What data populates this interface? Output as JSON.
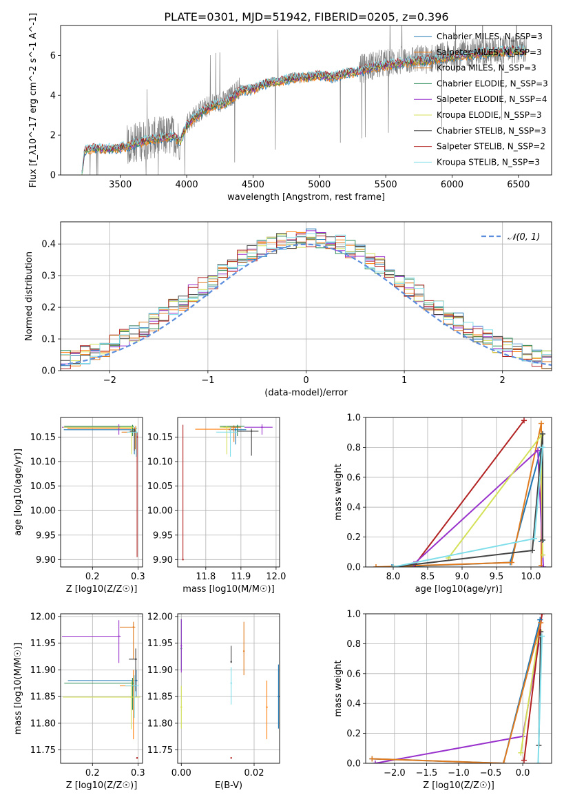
{
  "title": "PLATE=0301, MJD=51942, FIBERID=0205, z=0.396",
  "colors": {
    "Chabrier MILES": "#1f77b4",
    "Salpeter MILES": "#ff7f0e",
    "Kroupa MILES": "#e07b20",
    "Chabrier ELODIE": "#2e8b57",
    "Salpeter ELODIE": "#9932cc",
    "Kroupa ELODIE": "#d4e157",
    "Chabrier STELIB": "#444444",
    "Salpeter STELIB": "#b22222",
    "Kroupa STELIB": "#80deea",
    "data": "#808080",
    "normal": "#5b8ddc"
  },
  "chart_data": [
    {
      "id": "spectrum",
      "type": "line",
      "xlabel": "wavelength [Angstrom, rest frame]",
      "ylabel": "Flux [f_λ10^-17 erg cm^-2 s^-1 A^-1]",
      "xlim": [
        3050,
        6750
      ],
      "ylim": [
        0,
        7.5
      ],
      "xticks": [
        3500,
        4000,
        4500,
        5000,
        5500,
        6000,
        6500
      ],
      "yticks": [
        0,
        2,
        4,
        6
      ],
      "grid": false,
      "legend_position": "top-right",
      "legend": [
        "Chabrier MILES, N_SSP=3",
        "Salpeter MILES, N_SSP=3",
        "Kroupa MILES, N_SSP=3",
        "Chabrier ELODIE, N_SSP=3",
        "Salpeter ELODIE, N_SSP=4",
        "Kroupa ELODIE, N_SSP=3",
        "Chabrier STELIB, N_SSP=3",
        "Salpeter STELIB, N_SSP=2",
        "Kroupa STELIB, N_SSP=3"
      ],
      "data_continuum": {
        "x": [
          3210,
          3230,
          3300,
          3400,
          3500,
          3600,
          3700,
          3800,
          3900,
          3950,
          4000,
          4100,
          4200,
          4300,
          4400,
          4500,
          4600,
          4700,
          4800,
          4900,
          5000,
          5100,
          5200,
          5300,
          5400,
          5500,
          5600,
          5700,
          5800,
          5900,
          6000,
          6100,
          6200,
          6300,
          6400,
          6500,
          6560
        ],
        "y": [
          0.0,
          1.2,
          1.35,
          1.3,
          1.35,
          1.6,
          1.8,
          1.9,
          2.0,
          1.7,
          2.6,
          3.2,
          3.6,
          3.7,
          4.4,
          4.4,
          4.7,
          4.8,
          5.0,
          5.0,
          5.1,
          5.0,
          5.2,
          5.3,
          5.5,
          5.6,
          5.7,
          5.8,
          5.8,
          5.9,
          6.0,
          6.1,
          6.2,
          6.2,
          6.3,
          6.3,
          6.3
        ]
      },
      "model_continuum": {
        "x": [
          3210,
          3230,
          3300,
          3400,
          3500,
          3600,
          3700,
          3800,
          3900,
          3950,
          4000,
          4100,
          4200,
          4300,
          4400,
          4500,
          4600,
          4700,
          4800,
          4900,
          5000,
          5100,
          5200,
          5300,
          5400,
          5500,
          5600,
          5700,
          5800,
          5900,
          6000,
          6100,
          6200,
          6300,
          6400,
          6500,
          6560
        ],
        "y": [
          0.0,
          1.2,
          1.35,
          1.3,
          1.35,
          1.55,
          1.75,
          1.85,
          1.95,
          1.7,
          2.5,
          3.1,
          3.5,
          3.6,
          4.2,
          4.3,
          4.6,
          4.7,
          4.85,
          4.9,
          5.0,
          4.9,
          5.1,
          5.2,
          5.4,
          5.5,
          5.6,
          5.7,
          5.75,
          5.85,
          5.95,
          6.0,
          6.1,
          6.15,
          6.2,
          6.25,
          6.2
        ]
      }
    },
    {
      "id": "residuals",
      "type": "line",
      "xlabel": "(data-model)/error",
      "ylabel": "Normed distribution",
      "xlim": [
        -2.5,
        2.5
      ],
      "ylim": [
        0,
        0.47
      ],
      "xticks": [
        -2,
        -1,
        0,
        1,
        2
      ],
      "yticks": [
        0.0,
        0.1,
        0.2,
        0.3,
        0.4
      ],
      "grid": true,
      "legend_position": "top-right",
      "legend": [
        "𝒩(0, 1)"
      ],
      "hist_bin_width": 0.1
    },
    {
      "id": "age-vs-Z",
      "type": "scatter",
      "xlabel": "Z [log10(Z/Z☉)]",
      "ylabel": "age [log10(age/yr)]",
      "xlim": [
        0.13,
        0.31
      ],
      "ylim": [
        9.885,
        10.19
      ],
      "xticks": [
        0.2,
        0.3
      ],
      "yticks": [
        9.9,
        9.95,
        10.0,
        10.05,
        10.1,
        10.15
      ],
      "grid": true,
      "points": [
        {
          "series": "Chabrier MILES",
          "x": 0.292,
          "y": 10.165,
          "xerr": [
            0.155,
            0.004
          ],
          "yerr": [
            0.05,
            0.005
          ]
        },
        {
          "series": "Salpeter MILES",
          "x": 0.295,
          "y": 10.168,
          "xerr": [
            0.15,
            0.003
          ],
          "yerr": [
            0.01,
            0.005
          ]
        },
        {
          "series": "Kroupa MILES",
          "x": 0.294,
          "y": 10.16,
          "xerr": [
            0.03,
            0.004
          ],
          "yerr": [
            0.035,
            0.006
          ]
        },
        {
          "series": "Chabrier ELODIE",
          "x": 0.288,
          "y": 10.172,
          "xerr": [
            0.15,
            0.003
          ],
          "yerr": [
            0.02,
            0.003
          ]
        },
        {
          "series": "Salpeter ELODIE",
          "x": 0.258,
          "y": 10.17,
          "xerr": [
            0.125,
            0.003
          ],
          "yerr": [
            0.015,
            0.006
          ]
        },
        {
          "series": "Kroupa ELODIE",
          "x": 0.286,
          "y": 10.17,
          "xerr": [
            0.15,
            0.004
          ],
          "yerr": [
            0.055,
            0.003
          ]
        },
        {
          "series": "Chabrier STELIB",
          "x": 0.292,
          "y": 10.162,
          "xerr": [
            0.01,
            0.004
          ],
          "yerr": [
            0.04,
            0.005
          ]
        },
        {
          "series": "Salpeter STELIB",
          "x": 0.298,
          "y": 10.15,
          "xerr": [
            0.002,
            0.002
          ],
          "yerr": [
            0.245,
            0.01
          ]
        },
        {
          "series": "Kroupa STELIB",
          "x": 0.296,
          "y": 10.16,
          "xerr": [
            0.02,
            0.003
          ],
          "yerr": [
            0.05,
            0.01
          ]
        }
      ]
    },
    {
      "id": "age-vs-mass",
      "type": "scatter",
      "xlabel": "mass [log10(M/M☉)]",
      "ylabel": "",
      "xlim": [
        11.72,
        12.01
      ],
      "ylim": [
        9.885,
        10.19
      ],
      "xticks": [
        11.8,
        11.9,
        12.0
      ],
      "yticks": [
        9.9,
        9.95,
        10.0,
        10.05,
        10.1,
        10.15
      ],
      "grid": true,
      "points": [
        {
          "series": "Chabrier MILES",
          "x": 11.885,
          "y": 10.165,
          "xerr": [
            0.02,
            0.03
          ],
          "yerr": [
            0.03,
            0.005
          ]
        },
        {
          "series": "Salpeter MILES",
          "x": 11.87,
          "y": 10.166,
          "xerr": [
            0.1,
            0.01
          ],
          "yerr": [
            0.01,
            0.005
          ]
        },
        {
          "series": "Kroupa MILES",
          "x": 11.88,
          "y": 10.17,
          "xerr": [
            0.03,
            0.02
          ],
          "yerr": [
            0.03,
            0.004
          ]
        },
        {
          "series": "Chabrier ELODIE",
          "x": 11.89,
          "y": 10.172,
          "xerr": [
            0.05,
            0.02
          ],
          "yerr": [
            0.02,
            0.003
          ]
        },
        {
          "series": "Salpeter ELODIE",
          "x": 11.96,
          "y": 10.17,
          "xerr": [
            0.05,
            0.03
          ],
          "yerr": [
            0.015,
            0.006
          ]
        },
        {
          "series": "Kroupa ELODIE",
          "x": 11.86,
          "y": 10.17,
          "xerr": [
            0.02,
            0.01
          ],
          "yerr": [
            0.055,
            0.003
          ]
        },
        {
          "series": "Chabrier STELIB",
          "x": 11.93,
          "y": 10.162,
          "xerr": [
            0.04,
            0.02
          ],
          "yerr": [
            0.05,
            0.005
          ]
        },
        {
          "series": "Salpeter STELIB",
          "x": 11.735,
          "y": 9.9,
          "xerr": [
            0.001,
            0.001
          ],
          "yerr": [
            0.001,
            0.275
          ]
        },
        {
          "series": "Kroupa STELIB",
          "x": 11.87,
          "y": 10.16,
          "xerr": [
            0.04,
            0.02
          ],
          "yerr": [
            0.05,
            0.01
          ]
        }
      ]
    },
    {
      "id": "weight-vs-age",
      "type": "line",
      "xlabel": "age  [log10(age/yr)]",
      "ylabel": "mass weight",
      "xlim": [
        7.6,
        10.3
      ],
      "ylim": [
        0,
        1.0
      ],
      "xticks": [
        8.0,
        8.5,
        9.0,
        9.5,
        10.0
      ],
      "yticks": [
        0.0,
        0.2,
        0.4,
        0.6,
        0.8,
        1.0
      ],
      "grid": true,
      "series": [
        {
          "name": "Chabrier MILES",
          "x": [
            7.98,
            9.7,
            10.15,
            10.15
          ],
          "y": [
            0.0,
            0.03,
            0.8,
            0.17
          ]
        },
        {
          "name": "Kroupa MILES",
          "x": [
            7.75,
            9.72,
            10.15,
            10.15
          ],
          "y": [
            0.0,
            0.03,
            0.96,
            0.01
          ]
        },
        {
          "name": "Salpeter STELIB",
          "x": [
            8.32,
            9.9
          ],
          "y": [
            0.02,
            0.98
          ]
        },
        {
          "name": "Salpeter ELODIE",
          "x": [
            8.3,
            10.1,
            10.18
          ],
          "y": [
            0.02,
            0.78,
            0.0
          ]
        },
        {
          "name": "Kroupa ELODIE",
          "x": [
            8.8,
            10.15,
            10.17
          ],
          "y": [
            0.06,
            0.88,
            0.08
          ]
        },
        {
          "name": "Chabrier STELIB",
          "x": [
            8.0,
            10.02,
            10.17,
            10.17
          ],
          "y": [
            0.0,
            0.11,
            0.89,
            0.18
          ]
        },
        {
          "name": "Kroupa STELIB",
          "x": [
            8.0,
            10.05,
            10.17
          ],
          "y": [
            0.0,
            0.19,
            0.8
          ]
        }
      ]
    },
    {
      "id": "mass-vs-Z",
      "type": "scatter",
      "xlabel": "Z [log10(Z/Z☉)]",
      "ylabel": "mass [log10(M/M☉)]",
      "xlim": [
        0.13,
        0.31
      ],
      "ylim": [
        11.725,
        12.005
      ],
      "xticks": [
        0.2,
        0.3
      ],
      "yticks": [
        11.75,
        11.8,
        11.85,
        11.9,
        11.95,
        12.0
      ],
      "grid": true,
      "points": [
        {
          "series": "Chabrier MILES",
          "x": 0.296,
          "y": 11.88,
          "xerr": [
            0.15,
            0.003
          ],
          "yerr": [
            0.03,
            0.02
          ]
        },
        {
          "series": "Salpeter MILES",
          "x": 0.29,
          "y": 11.87,
          "xerr": [
            0.03,
            0.004
          ],
          "yerr": [
            0.1,
            0.03
          ]
        },
        {
          "series": "Kroupa MILES",
          "x": 0.29,
          "y": 11.98,
          "xerr": [
            0.03,
            0.004
          ],
          "yerr": [
            0.06,
            0.01
          ]
        },
        {
          "series": "Chabrier ELODIE",
          "x": 0.288,
          "y": 11.875,
          "xerr": [
            0.15,
            0.003
          ],
          "yerr": [
            0.05,
            0.01
          ]
        },
        {
          "series": "Salpeter ELODIE",
          "x": 0.258,
          "y": 11.963,
          "xerr": [
            0.125,
            0.004
          ],
          "yerr": [
            0.05,
            0.03
          ]
        },
        {
          "series": "Kroupa ELODIE",
          "x": 0.285,
          "y": 11.849,
          "xerr": [
            0.15,
            0.02
          ],
          "yerr": [
            0.06,
            0.03
          ]
        },
        {
          "series": "Chabrier STELIB",
          "x": 0.295,
          "y": 11.92,
          "xerr": [
            0.015,
            0.003
          ],
          "yerr": [
            0.06,
            0.02
          ]
        },
        {
          "series": "Salpeter STELIB",
          "x": 0.298,
          "y": 11.735,
          "xerr": [
            0.002,
            0.002
          ],
          "yerr": [
            0.001,
            0.001
          ]
        },
        {
          "series": "Kroupa STELIB",
          "x": 0.292,
          "y": 11.87,
          "xerr": [
            0.02,
            0.01
          ],
          "yerr": [
            0.06,
            0.02
          ]
        }
      ]
    },
    {
      "id": "mass-vs-ebv",
      "type": "scatter",
      "xlabel": "E(B-V)",
      "ylabel": "",
      "xlim": [
        -0.001,
        0.027
      ],
      "ylim": [
        11.725,
        12.005
      ],
      "xticks": [
        0.0,
        0.02
      ],
      "yticks": [
        11.75,
        11.8,
        11.85,
        11.9,
        11.95,
        12.0
      ],
      "grid": true,
      "points": [
        {
          "series": "Chabrier MILES",
          "x": 0.0267,
          "y": 11.85,
          "xerr": [
            0,
            0
          ],
          "yerr": [
            0.06,
            0.06
          ]
        },
        {
          "series": "Salpeter MILES",
          "x": 0.0235,
          "y": 11.83,
          "xerr": [
            0,
            0
          ],
          "yerr": [
            0.06,
            0.05
          ]
        },
        {
          "series": "Kroupa MILES",
          "x": 0.0172,
          "y": 11.935,
          "xerr": [
            0,
            0
          ],
          "yerr": [
            0.045,
            0.055
          ]
        },
        {
          "series": "Chabrier ELODIE",
          "x": 0.0,
          "y": 11.94,
          "xerr": [
            0,
            0
          ],
          "yerr": [
            0.04,
            0.055
          ]
        },
        {
          "series": "Salpeter ELODIE",
          "x": 0.0,
          "y": 11.945,
          "xerr": [
            0,
            0
          ],
          "yerr": [
            0.05,
            0.05
          ]
        },
        {
          "series": "Kroupa ELODIE",
          "x": 0.0,
          "y": 11.83,
          "xerr": [
            0,
            0
          ],
          "yerr": [
            0.04,
            0.04
          ]
        },
        {
          "series": "Chabrier STELIB",
          "x": 0.0137,
          "y": 11.915,
          "xerr": [
            0,
            0
          ],
          "yerr": [
            0.002,
            0.03
          ]
        },
        {
          "series": "Salpeter STELIB",
          "x": 0.0137,
          "y": 11.735,
          "xerr": [
            0,
            0
          ],
          "yerr": [
            0.001,
            0.001
          ]
        },
        {
          "series": "Kroupa STELIB",
          "x": 0.0137,
          "y": 11.875,
          "xerr": [
            0,
            0
          ],
          "yerr": [
            0.04,
            0.03
          ]
        }
      ]
    },
    {
      "id": "weight-vs-Z",
      "type": "line",
      "xlabel": "Z [log10(Z/Z☉)]",
      "ylabel": "mass weight",
      "xlim": [
        -2.45,
        0.45
      ],
      "ylim": [
        0,
        1.0
      ],
      "xticks": [
        -2.0,
        -1.5,
        -1.0,
        -0.5,
        0.0
      ],
      "yticks": [
        0.0,
        0.2,
        0.4,
        0.6,
        0.8,
        1.0
      ],
      "grid": true,
      "series": [
        {
          "name": "Salpeter ELODIE",
          "x": [
            -2.3,
            0.0,
            0.25
          ],
          "y": [
            0.0,
            0.18,
            0.8
          ]
        },
        {
          "name": "Kroupa ELODIE",
          "x": [
            -0.03,
            0.26
          ],
          "y": [
            0.07,
            0.89
          ]
        },
        {
          "name": "Chabrier STELIB",
          "x": [
            0.25,
            0.28
          ],
          "y": [
            0.12,
            0.88
          ]
        },
        {
          "name": "Salpeter STELIB",
          "x": [
            0.02,
            0.3
          ],
          "y": [
            0.02,
            1.0
          ]
        },
        {
          "name": "Kroupa STELIB",
          "x": [
            0.24,
            0.3
          ],
          "y": [
            0.0,
            0.85
          ]
        },
        {
          "name": "Chabrier MILES",
          "x": [
            -2.35,
            -0.3,
            0.27
          ],
          "y": [
            0.03,
            0.0,
            0.96
          ]
        },
        {
          "name": "Kroupa MILES",
          "x": [
            -2.35,
            -0.3,
            0.28
          ],
          "y": [
            0.03,
            0.0,
            0.94
          ]
        }
      ]
    }
  ]
}
